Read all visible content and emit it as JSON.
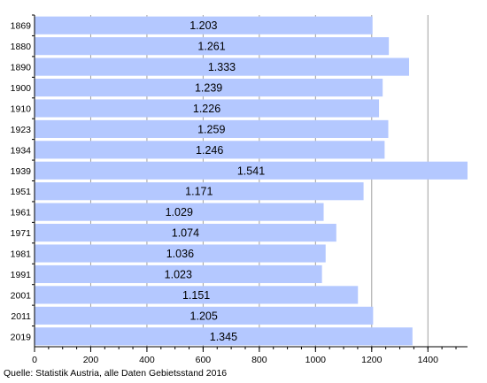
{
  "chart_data": {
    "type": "bar",
    "orientation": "horizontal",
    "categories": [
      "1869",
      "1880",
      "1890",
      "1900",
      "1910",
      "1923",
      "1934",
      "1939",
      "1951",
      "1961",
      "1971",
      "1981",
      "1991",
      "2001",
      "2011",
      "2019"
    ],
    "values": [
      1203,
      1261,
      1333,
      1239,
      1226,
      1259,
      1246,
      1541,
      1171,
      1029,
      1074,
      1036,
      1023,
      1151,
      1205,
      1345
    ],
    "value_labels": [
      "1.203",
      "1.261",
      "1.333",
      "1.239",
      "1.226",
      "1.259",
      "1.246",
      "1.541",
      "1.171",
      "1.029",
      "1.074",
      "1.036",
      "1.023",
      "1.151",
      "1.205",
      "1.345"
    ],
    "x_ticks": [
      0,
      200,
      400,
      600,
      800,
      1000,
      1200,
      1400
    ],
    "xlim": [
      0,
      1541
    ],
    "grid": true,
    "bar_color": "#b4c8ff",
    "grid_color": "#a0a0a0"
  },
  "source_note": "Quelle: Statistik Austria, alle Daten Gebietsstand 2016"
}
